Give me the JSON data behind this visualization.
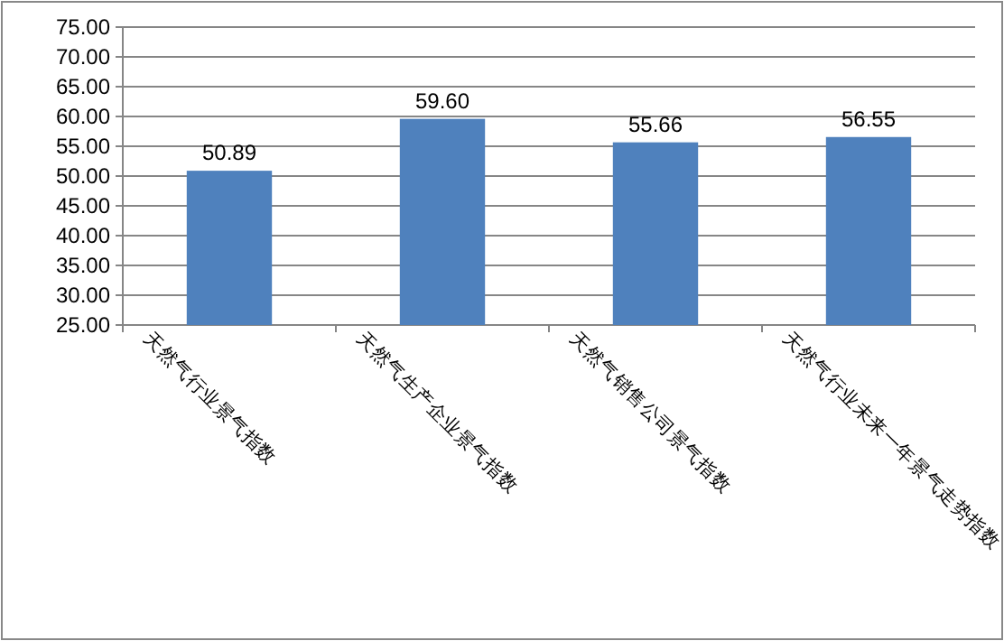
{
  "chart_data": {
    "type": "bar",
    "categories": [
      "天然气行业景气指数",
      "天然气生产企业景气指数",
      "天然气销售公司景气指数",
      "天然气行业未来一年景气走势指数"
    ],
    "values": [
      50.89,
      59.6,
      55.66,
      56.55
    ],
    "value_labels": [
      "50.89",
      "59.60",
      "55.66",
      "56.55"
    ],
    "color": "#4f81bd",
    "ylim": [
      25,
      75
    ],
    "yticks": [
      {
        "value": 25,
        "label": "25.00"
      },
      {
        "value": 30,
        "label": "30.00"
      },
      {
        "value": 35,
        "label": "35.00"
      },
      {
        "value": 40,
        "label": "40.00"
      },
      {
        "value": 45,
        "label": "45.00"
      },
      {
        "value": 50,
        "label": "50.00"
      },
      {
        "value": 55,
        "label": "55.00"
      },
      {
        "value": 60,
        "label": "60.00"
      },
      {
        "value": 65,
        "label": "65.00"
      },
      {
        "value": 70,
        "label": "70.00"
      },
      {
        "value": 75,
        "label": "75.00"
      }
    ],
    "grid": "y"
  }
}
